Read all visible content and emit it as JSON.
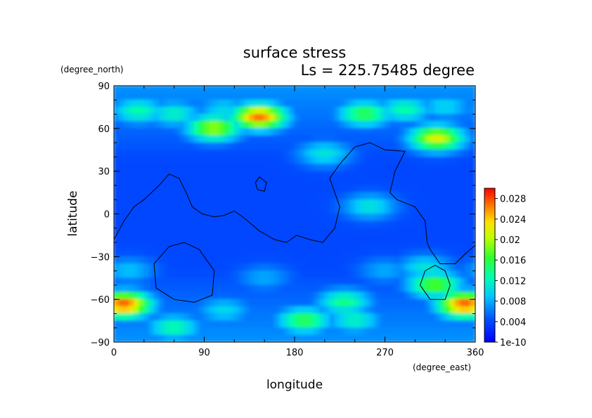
{
  "chart_data": {
    "type": "heatmap",
    "title": "surface stress",
    "subtitle": "Ls = 225.75485 degree",
    "xlabel": "longitude",
    "ylabel": "latitude",
    "x_unit": "(degree_east)",
    "y_unit": "(degree_north)",
    "xlim": [
      0,
      360
    ],
    "ylim": [
      -90,
      90
    ],
    "x_ticks": [
      "0",
      "90",
      "180",
      "270",
      "360"
    ],
    "y_ticks": [
      "90",
      "60",
      "30",
      "0",
      "−30",
      "−60",
      "−90"
    ],
    "colorbar": {
      "ticks": [
        "0.028",
        "0.024",
        "0.02",
        "0.016",
        "0.012",
        "0.008",
        "0.004",
        "1e-10"
      ],
      "tick_values": [
        0.028,
        0.024,
        0.02,
        0.016,
        0.012,
        0.008,
        0.004,
        0.0
      ],
      "range": [
        0,
        0.03
      ]
    },
    "background_level": 0.004,
    "hotspots": [
      {
        "lon": 145,
        "lat": 68,
        "value": 0.027
      },
      {
        "lon": 100,
        "lat": 60,
        "value": 0.02
      },
      {
        "lon": 60,
        "lat": 70,
        "value": 0.012
      },
      {
        "lon": 110,
        "lat": 73,
        "value": 0.01
      },
      {
        "lon": 25,
        "lat": 72,
        "value": 0.013
      },
      {
        "lon": 250,
        "lat": 70,
        "value": 0.016
      },
      {
        "lon": 290,
        "lat": 73,
        "value": 0.013
      },
      {
        "lon": 330,
        "lat": 75,
        "value": 0.01
      },
      {
        "lon": 322,
        "lat": 53,
        "value": 0.022
      },
      {
        "lon": 210,
        "lat": 42,
        "value": 0.011
      },
      {
        "lon": 255,
        "lat": 5,
        "value": 0.011
      },
      {
        "lon": 10,
        "lat": -64,
        "value": 0.028
      },
      {
        "lon": 350,
        "lat": -64,
        "value": 0.028
      },
      {
        "lon": 320,
        "lat": -50,
        "value": 0.018
      },
      {
        "lon": 310,
        "lat": -38,
        "value": 0.011
      },
      {
        "lon": 230,
        "lat": -62,
        "value": 0.014
      },
      {
        "lon": 190,
        "lat": -75,
        "value": 0.016
      },
      {
        "lon": 240,
        "lat": -75,
        "value": 0.012
      },
      {
        "lon": 60,
        "lat": -80,
        "value": 0.013
      },
      {
        "lon": 110,
        "lat": -68,
        "value": 0.01
      },
      {
        "lon": 15,
        "lat": -40,
        "value": 0.009
      },
      {
        "lon": 150,
        "lat": -45,
        "value": 0.008
      },
      {
        "lon": 270,
        "lat": -40,
        "value": 0.008
      }
    ],
    "contours": [
      [
        [
          0,
          -18
        ],
        [
          10,
          -5
        ],
        [
          20,
          5
        ],
        [
          30,
          10
        ],
        [
          45,
          20
        ],
        [
          55,
          28
        ],
        [
          65,
          25
        ],
        [
          72,
          15
        ],
        [
          78,
          5
        ],
        [
          88,
          0
        ],
        [
          100,
          -2
        ],
        [
          110,
          -1
        ],
        [
          120,
          2
        ],
        [
          130,
          -3
        ],
        [
          145,
          -12
        ],
        [
          160,
          -18
        ],
        [
          172,
          -20
        ],
        [
          182,
          -15
        ],
        [
          195,
          -18
        ],
        [
          208,
          -20
        ],
        [
          220,
          -10
        ],
        [
          225,
          5
        ],
        [
          215,
          25
        ],
        [
          225,
          35
        ],
        [
          240,
          47
        ],
        [
          255,
          50
        ],
        [
          270,
          45
        ],
        [
          290,
          44
        ],
        [
          280,
          30
        ],
        [
          275,
          15
        ],
        [
          282,
          10
        ],
        [
          300,
          5
        ],
        [
          310,
          -5
        ],
        [
          312,
          -20
        ],
        [
          315,
          -25
        ],
        [
          325,
          -35
        ],
        [
          340,
          -35
        ],
        [
          350,
          -28
        ],
        [
          360,
          -22
        ]
      ],
      [
        [
          70,
          -20
        ],
        [
          85,
          -25
        ],
        [
          100,
          -40
        ],
        [
          98,
          -57
        ],
        [
          80,
          -62
        ],
        [
          60,
          -60
        ],
        [
          42,
          -52
        ],
        [
          40,
          -35
        ],
        [
          55,
          -23
        ],
        [
          70,
          -20
        ]
      ],
      [
        [
          320,
          -36
        ],
        [
          330,
          -40
        ],
        [
          335,
          -50
        ],
        [
          330,
          -60
        ],
        [
          315,
          -60
        ],
        [
          305,
          -50
        ],
        [
          310,
          -40
        ],
        [
          320,
          -36
        ]
      ],
      [
        [
          145,
          26
        ],
        [
          152,
          22
        ],
        [
          150,
          16
        ],
        [
          143,
          17
        ],
        [
          141,
          22
        ],
        [
          145,
          26
        ]
      ]
    ]
  }
}
